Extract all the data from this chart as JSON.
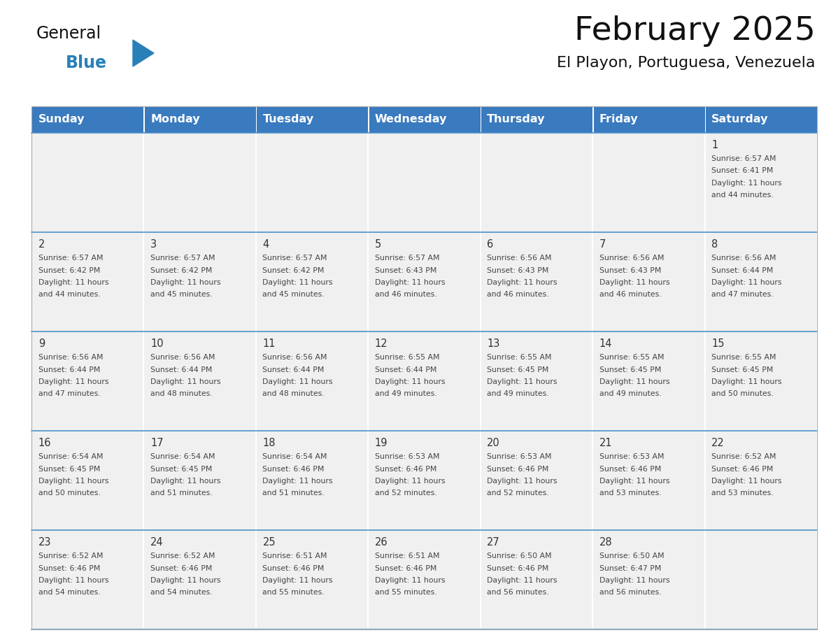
{
  "title": "February 2025",
  "subtitle": "El Playon, Portuguesa, Venezuela",
  "header_color": "#3a7abf",
  "header_text_color": "#ffffff",
  "cell_bg_color": "#f0f0f0",
  "cell_border_color": "#4a90c4",
  "text_color": "#444444",
  "day_number_color": "#333333",
  "days_of_week": [
    "Sunday",
    "Monday",
    "Tuesday",
    "Wednesday",
    "Thursday",
    "Friday",
    "Saturday"
  ],
  "calendar_data": [
    [
      null,
      null,
      null,
      null,
      null,
      null,
      {
        "day": 1,
        "sunrise": "6:57 AM",
        "sunset": "6:41 PM",
        "daylight": "11 hours\nand 44 minutes."
      }
    ],
    [
      {
        "day": 2,
        "sunrise": "6:57 AM",
        "sunset": "6:42 PM",
        "daylight": "11 hours\nand 44 minutes."
      },
      {
        "day": 3,
        "sunrise": "6:57 AM",
        "sunset": "6:42 PM",
        "daylight": "11 hours\nand 45 minutes."
      },
      {
        "day": 4,
        "sunrise": "6:57 AM",
        "sunset": "6:42 PM",
        "daylight": "11 hours\nand 45 minutes."
      },
      {
        "day": 5,
        "sunrise": "6:57 AM",
        "sunset": "6:43 PM",
        "daylight": "11 hours\nand 46 minutes."
      },
      {
        "day": 6,
        "sunrise": "6:56 AM",
        "sunset": "6:43 PM",
        "daylight": "11 hours\nand 46 minutes."
      },
      {
        "day": 7,
        "sunrise": "6:56 AM",
        "sunset": "6:43 PM",
        "daylight": "11 hours\nand 46 minutes."
      },
      {
        "day": 8,
        "sunrise": "6:56 AM",
        "sunset": "6:44 PM",
        "daylight": "11 hours\nand 47 minutes."
      }
    ],
    [
      {
        "day": 9,
        "sunrise": "6:56 AM",
        "sunset": "6:44 PM",
        "daylight": "11 hours\nand 47 minutes."
      },
      {
        "day": 10,
        "sunrise": "6:56 AM",
        "sunset": "6:44 PM",
        "daylight": "11 hours\nand 48 minutes."
      },
      {
        "day": 11,
        "sunrise": "6:56 AM",
        "sunset": "6:44 PM",
        "daylight": "11 hours\nand 48 minutes."
      },
      {
        "day": 12,
        "sunrise": "6:55 AM",
        "sunset": "6:44 PM",
        "daylight": "11 hours\nand 49 minutes."
      },
      {
        "day": 13,
        "sunrise": "6:55 AM",
        "sunset": "6:45 PM",
        "daylight": "11 hours\nand 49 minutes."
      },
      {
        "day": 14,
        "sunrise": "6:55 AM",
        "sunset": "6:45 PM",
        "daylight": "11 hours\nand 49 minutes."
      },
      {
        "day": 15,
        "sunrise": "6:55 AM",
        "sunset": "6:45 PM",
        "daylight": "11 hours\nand 50 minutes."
      }
    ],
    [
      {
        "day": 16,
        "sunrise": "6:54 AM",
        "sunset": "6:45 PM",
        "daylight": "11 hours\nand 50 minutes."
      },
      {
        "day": 17,
        "sunrise": "6:54 AM",
        "sunset": "6:45 PM",
        "daylight": "11 hours\nand 51 minutes."
      },
      {
        "day": 18,
        "sunrise": "6:54 AM",
        "sunset": "6:46 PM",
        "daylight": "11 hours\nand 51 minutes."
      },
      {
        "day": 19,
        "sunrise": "6:53 AM",
        "sunset": "6:46 PM",
        "daylight": "11 hours\nand 52 minutes."
      },
      {
        "day": 20,
        "sunrise": "6:53 AM",
        "sunset": "6:46 PM",
        "daylight": "11 hours\nand 52 minutes."
      },
      {
        "day": 21,
        "sunrise": "6:53 AM",
        "sunset": "6:46 PM",
        "daylight": "11 hours\nand 53 minutes."
      },
      {
        "day": 22,
        "sunrise": "6:52 AM",
        "sunset": "6:46 PM",
        "daylight": "11 hours\nand 53 minutes."
      }
    ],
    [
      {
        "day": 23,
        "sunrise": "6:52 AM",
        "sunset": "6:46 PM",
        "daylight": "11 hours\nand 54 minutes."
      },
      {
        "day": 24,
        "sunrise": "6:52 AM",
        "sunset": "6:46 PM",
        "daylight": "11 hours\nand 54 minutes."
      },
      {
        "day": 25,
        "sunrise": "6:51 AM",
        "sunset": "6:46 PM",
        "daylight": "11 hours\nand 55 minutes."
      },
      {
        "day": 26,
        "sunrise": "6:51 AM",
        "sunset": "6:46 PM",
        "daylight": "11 hours\nand 55 minutes."
      },
      {
        "day": 27,
        "sunrise": "6:50 AM",
        "sunset": "6:46 PM",
        "daylight": "11 hours\nand 56 minutes."
      },
      {
        "day": 28,
        "sunrise": "6:50 AM",
        "sunset": "6:47 PM",
        "daylight": "11 hours\nand 56 minutes."
      },
      null
    ]
  ],
  "logo_text_general": "General",
  "logo_text_blue": "Blue",
  "logo_triangle_color": "#2980b9",
  "logo_general_color": "#111111",
  "logo_blue_color": "#2980b9",
  "fig_width": 11.88,
  "fig_height": 9.18,
  "dpi": 100
}
